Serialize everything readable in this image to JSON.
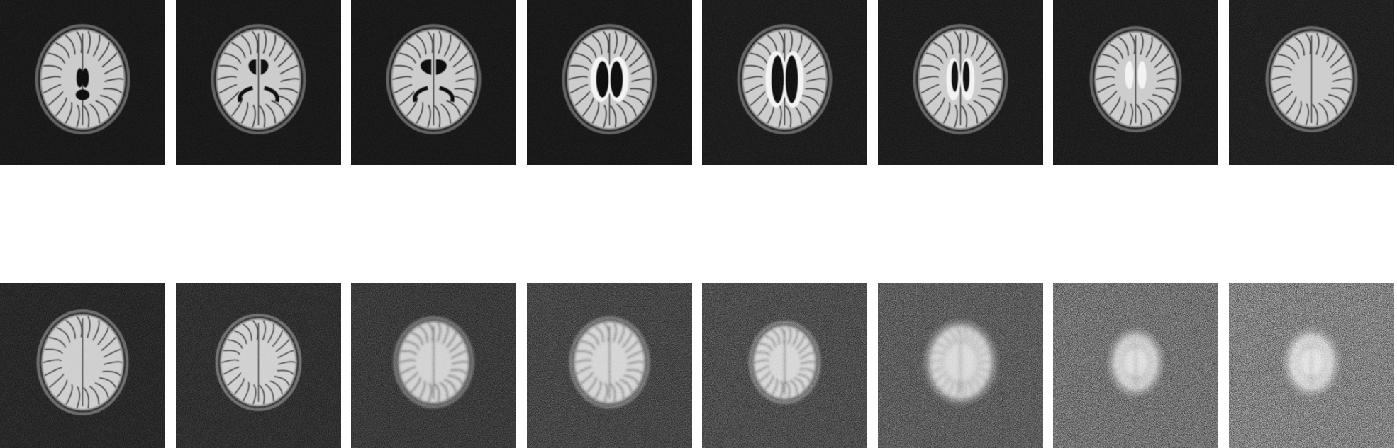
{
  "figure": {
    "rows": [
      {
        "name": "upper-row",
        "tiles": [
          {
            "index": 1,
            "brain": "large",
            "ventricles": "body-small",
            "bright_rims": false,
            "noise": 0.04
          },
          {
            "index": 2,
            "brain": "large",
            "ventricles": "horns",
            "bright_rims": false,
            "noise": 0.04
          },
          {
            "index": 3,
            "brain": "large",
            "ventricles": "horns-wide",
            "bright_rims": false,
            "noise": 0.04
          },
          {
            "index": 4,
            "brain": "large",
            "ventricles": "body",
            "bright_rims": true,
            "noise": 0.04
          },
          {
            "index": 5,
            "brain": "large",
            "ventricles": "body-tall",
            "bright_rims": true,
            "noise": 0.05
          },
          {
            "index": 6,
            "brain": "large",
            "ventricles": "slits",
            "bright_rims": true,
            "noise": 0.05
          },
          {
            "index": 7,
            "brain": "medium",
            "ventricles": "faint",
            "bright_rims": true,
            "noise": 0.05
          },
          {
            "index": 8,
            "brain": "medium",
            "ventricles": "none",
            "bright_rims": false,
            "noise": 0.06
          }
        ]
      },
      {
        "name": "lower-row",
        "tiles": [
          {
            "index": 9,
            "brain": "medium",
            "ventricles": "none",
            "bright_rims": false,
            "noise": 0.08
          },
          {
            "index": 10,
            "brain": "medium-small",
            "ventricles": "none",
            "bright_rims": false,
            "noise": 0.1
          },
          {
            "index": 11,
            "brain": "small",
            "ventricles": "none",
            "bright_rims": false,
            "noise": 0.13
          },
          {
            "index": 12,
            "brain": "small",
            "ventricles": "none",
            "bright_rims": false,
            "noise": 0.16
          },
          {
            "index": 13,
            "brain": "smaller",
            "ventricles": "none",
            "bright_rims": false,
            "noise": 0.18
          },
          {
            "index": 14,
            "brain": "smaller",
            "ventricles": "none",
            "bright_rims": false,
            "noise": 0.22
          },
          {
            "index": 15,
            "brain": "tiny",
            "ventricles": "none",
            "bright_rims": false,
            "noise": 0.28
          },
          {
            "index": 16,
            "brain": "tiny",
            "ventricles": "none",
            "bright_rims": false,
            "noise": 0.32
          }
        ]
      }
    ]
  },
  "colors": {
    "background": "#ffffff",
    "tile": "#0b0b0b",
    "skull": "#6f6f6f",
    "brain": "#c9c9c9",
    "sulci": "#3a3a3a",
    "csf": "#050505",
    "bright": "#f2f2f2"
  }
}
